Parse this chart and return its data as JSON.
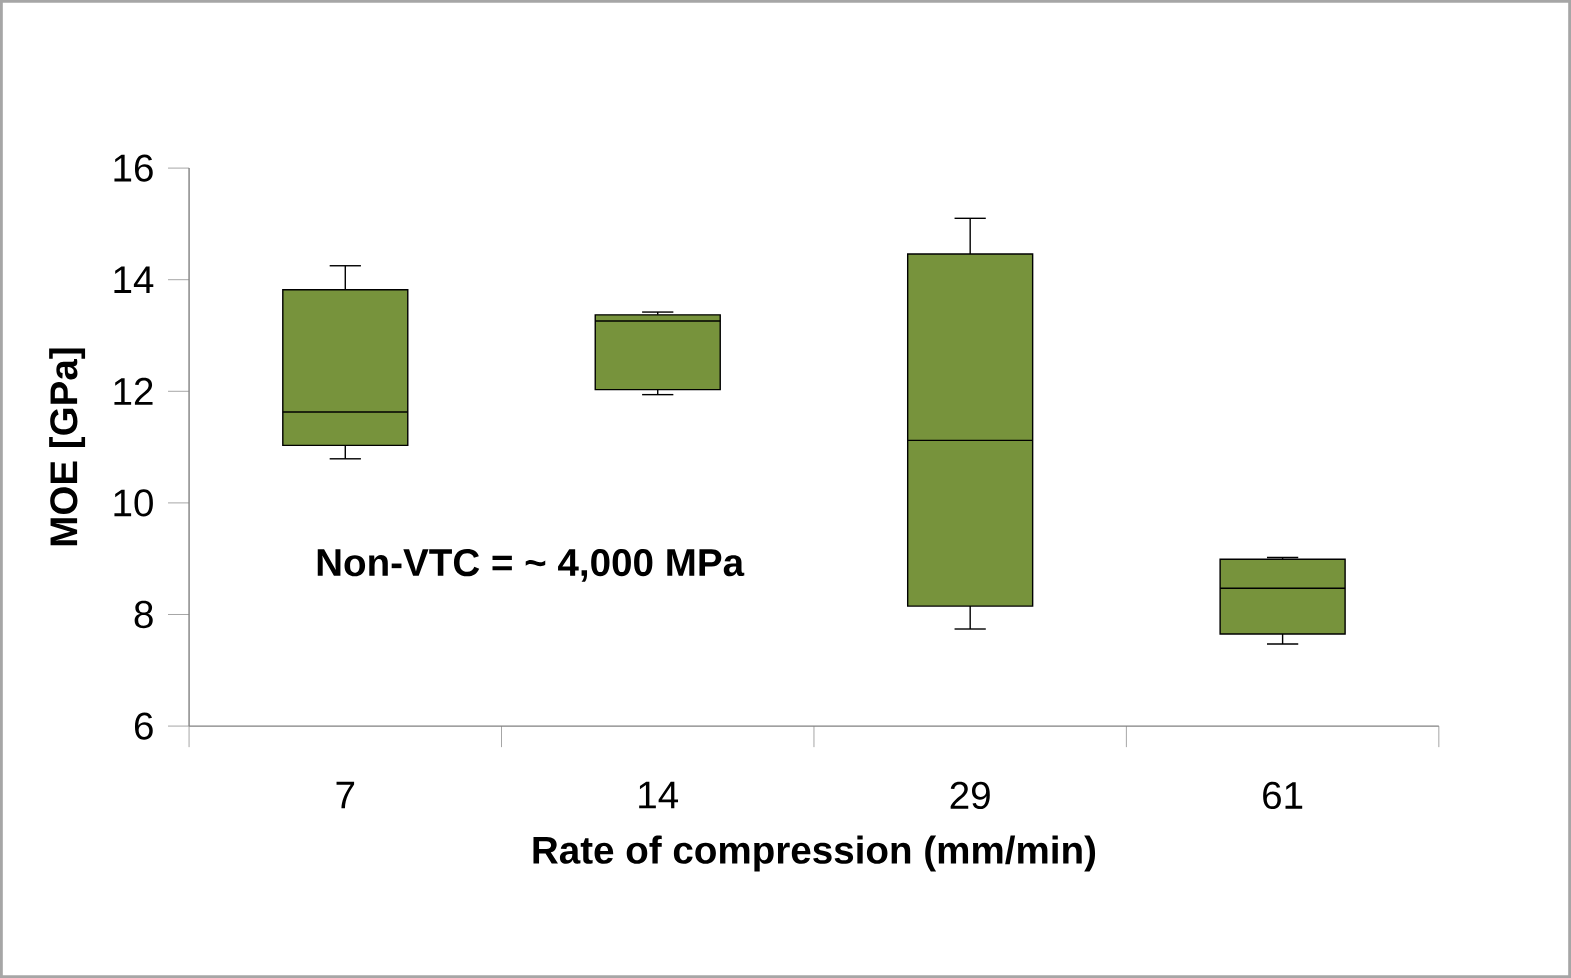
{
  "chart_data": {
    "type": "box",
    "xlabel": "Rate of compression (mm/min)",
    "ylabel": "MOE [GPa]",
    "categories": [
      "7",
      "14",
      "29",
      "61"
    ],
    "color": "#77933c",
    "boxes": [
      {
        "low": 10.79,
        "q1": 11.03,
        "median": 11.63,
        "q3": 13.82,
        "high": 14.25
      },
      {
        "low": 11.94,
        "q1": 12.03,
        "median": 13.26,
        "q3": 13.37,
        "high": 13.42
      },
      {
        "low": 7.74,
        "q1": 8.15,
        "median": 11.12,
        "q3": 14.46,
        "high": 15.1
      },
      {
        "low": 7.47,
        "q1": 7.65,
        "median": 8.47,
        "q3": 8.99,
        "high": 9.02
      }
    ],
    "ylim": [
      6,
      16
    ],
    "yticks": [
      6,
      8,
      10,
      12,
      14,
      16
    ],
    "grid": false,
    "annotations": [
      "Non-VTC = ~ 4,000 MPa"
    ]
  }
}
